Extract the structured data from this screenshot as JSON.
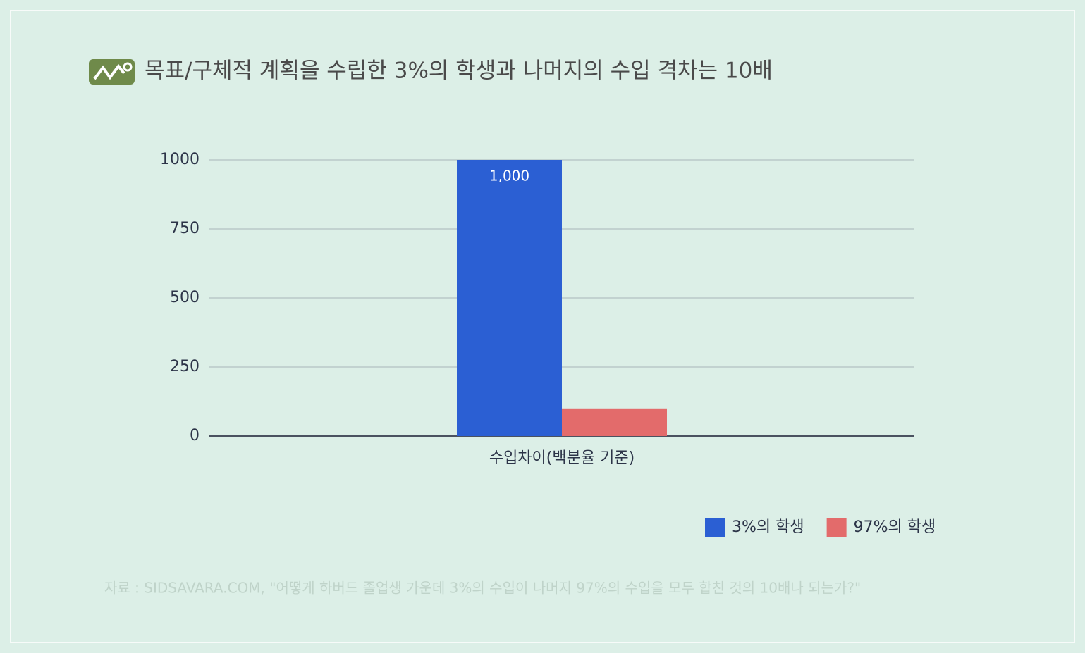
{
  "chart_data": {
    "type": "bar",
    "title": "목표/구체적 계획을 수립한 3%의 학생과 나머지의 수입 격차는 10배",
    "categories": [
      "수입차이(백분율 기준)"
    ],
    "series": [
      {
        "name": "3%의 학생",
        "color": "#2b5fd3",
        "values": [
          1000
        ],
        "value_labels": [
          "1,000"
        ]
      },
      {
        "name": "97%의 학생",
        "color": "#e36b6b",
        "values": [
          100
        ]
      }
    ],
    "ylim": [
      0,
      1000
    ],
    "yticks": [
      0,
      250,
      500,
      750,
      1000
    ],
    "grid": true,
    "legend": "lower right",
    "source": "자료 : SIDSAVARA.COM, \"어떻게 하버드 졸업생 가운데 3%의 수입이 나머지 97%의 수입을 모두 합친 것의 10배나 되는가?\""
  }
}
